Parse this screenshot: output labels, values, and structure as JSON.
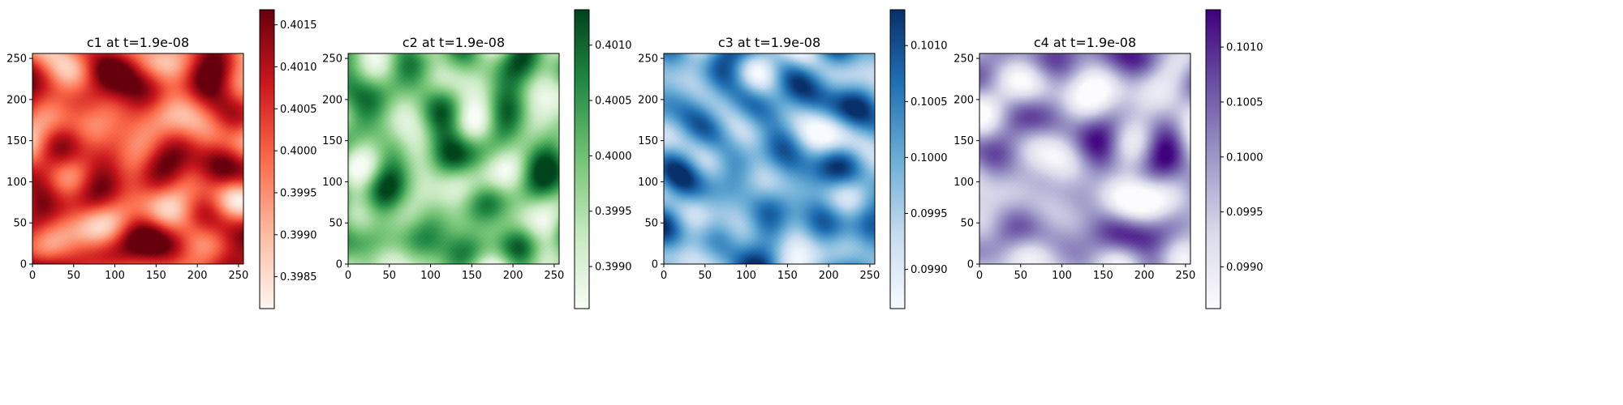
{
  "chart_data": [
    {
      "type": "heatmap",
      "title": "c1 at t=1.9e-08",
      "xlabel": "",
      "ylabel": "",
      "xlim": [
        0,
        256
      ],
      "ylim": [
        0,
        256
      ],
      "xticks": [
        0,
        50,
        100,
        150,
        200,
        250
      ],
      "yticks": [
        0,
        50,
        100,
        150,
        200,
        250
      ],
      "colormap": "Reds",
      "colormap_stops": [
        "#fff5f0",
        "#fcbba1",
        "#fb6a4a",
        "#cb181d",
        "#67000d"
      ],
      "vmin": 0.39812,
      "vmax": 0.40168,
      "colorbar_ticks": [
        "0.3985",
        "0.3990",
        "0.3995",
        "0.4000",
        "0.4005",
        "0.4010",
        "0.4015"
      ],
      "colorbar_values": [
        0.3985,
        0.399,
        0.3995,
        0.4,
        0.4005,
        0.401,
        0.4015
      ],
      "field_mean_fraction": 0.62,
      "seed": 11
    },
    {
      "type": "heatmap",
      "title": "c2 at t=1.9e-08",
      "xlabel": "",
      "ylabel": "",
      "xlim": [
        0,
        256
      ],
      "ylim": [
        0,
        256
      ],
      "xticks": [
        0,
        50,
        100,
        150,
        200,
        250
      ],
      "yticks": [
        0,
        50,
        100,
        150,
        200,
        250
      ],
      "colormap": "Greens",
      "colormap_stops": [
        "#f7fcf5",
        "#c7e9c0",
        "#74c476",
        "#238b45",
        "#00441b"
      ],
      "vmin": 0.39862,
      "vmax": 0.40132,
      "colorbar_ticks": [
        "0.3990",
        "0.3995",
        "0.4000",
        "0.4005",
        "0.4010"
      ],
      "colorbar_values": [
        0.399,
        0.3995,
        0.4,
        0.4005,
        0.401
      ],
      "field_mean_fraction": 0.55,
      "seed": 23
    },
    {
      "type": "heatmap",
      "title": "c3 at t=1.9e-08",
      "xlabel": "",
      "ylabel": "",
      "xlim": [
        0,
        256
      ],
      "ylim": [
        0,
        256
      ],
      "xticks": [
        0,
        50,
        100,
        150,
        200,
        250
      ],
      "yticks": [
        0,
        50,
        100,
        150,
        200,
        250
      ],
      "colormap": "Blues",
      "colormap_stops": [
        "#f7fbff",
        "#c6dbef",
        "#6baed6",
        "#2171b5",
        "#08306b"
      ],
      "vmin": 0.09865,
      "vmax": 0.10132,
      "colorbar_ticks": [
        "0.0990",
        "0.0995",
        "0.1000",
        "0.1005",
        "0.1010"
      ],
      "colorbar_values": [
        0.099,
        0.0995,
        0.1,
        0.1005,
        0.101
      ],
      "field_mean_fraction": 0.5,
      "seed": 37
    },
    {
      "type": "heatmap",
      "title": "c4 at t=1.9e-08",
      "xlabel": "",
      "ylabel": "",
      "xlim": [
        0,
        256
      ],
      "ylim": [
        0,
        256
      ],
      "xticks": [
        0,
        50,
        100,
        150,
        200,
        250
      ],
      "yticks": [
        0,
        50,
        100,
        150,
        200,
        250
      ],
      "colormap": "Purples",
      "colormap_stops": [
        "#fcfbfd",
        "#dadaeb",
        "#9e9ac8",
        "#6a51a3",
        "#3f007d"
      ],
      "vmin": 0.09862,
      "vmax": 0.10134,
      "colorbar_ticks": [
        "0.0990",
        "0.0995",
        "0.1000",
        "0.1005",
        "0.1010"
      ],
      "colorbar_values": [
        0.099,
        0.0995,
        0.1,
        0.1005,
        0.101
      ],
      "field_mean_fraction": 0.42,
      "seed": 53
    }
  ]
}
